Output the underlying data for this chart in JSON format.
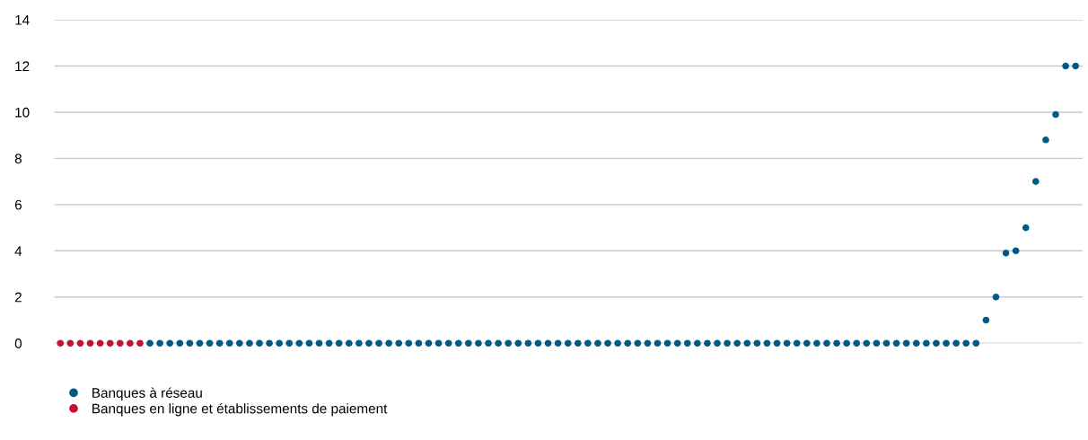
{
  "chart_data": {
    "type": "scatter",
    "categories": [
      null,
      null,
      null,
      null,
      null,
      null,
      null,
      null,
      null,
      null,
      null,
      null,
      null,
      null,
      null,
      null,
      null,
      null,
      null,
      null,
      null,
      null,
      null,
      null,
      null,
      null,
      null,
      null,
      null,
      null,
      null,
      null,
      null,
      null,
      null,
      null,
      null,
      null,
      null,
      null,
      null,
      null,
      null,
      null,
      null,
      null,
      null,
      null,
      null,
      null,
      null,
      null,
      null,
      null,
      null,
      null,
      null,
      null,
      null,
      null,
      null,
      null,
      null,
      null,
      null,
      null,
      null,
      null,
      null,
      null,
      null,
      null,
      null,
      null,
      null,
      null,
      null,
      null,
      null,
      null,
      null,
      null,
      null,
      null,
      null,
      null,
      null,
      null,
      null,
      null,
      null,
      null,
      null,
      null,
      null,
      null,
      null,
      null,
      null,
      null,
      null,
      null,
      null
    ],
    "series": [
      {
        "name": "Banques à réseau",
        "color": "#005a87",
        "values": [
          null,
          null,
          null,
          null,
          null,
          null,
          null,
          null,
          null,
          0,
          0,
          0,
          0,
          0,
          0,
          0,
          0,
          0,
          0,
          0,
          0,
          0,
          0,
          0,
          0,
          0,
          0,
          0,
          0,
          0,
          0,
          0,
          0,
          0,
          0,
          0,
          0,
          0,
          0,
          0,
          0,
          0,
          0,
          0,
          0,
          0,
          0,
          0,
          0,
          0,
          0,
          0,
          0,
          0,
          0,
          0,
          0,
          0,
          0,
          0,
          0,
          0,
          0,
          0,
          0,
          0,
          0,
          0,
          0,
          0,
          0,
          0,
          0,
          0,
          0,
          0,
          0,
          0,
          0,
          0,
          0,
          0,
          0,
          0,
          0,
          0,
          0,
          0,
          0,
          0,
          0,
          0,
          0,
          1.0,
          2.0,
          3.9,
          4.0,
          5.0,
          7.0,
          8.8,
          9.9,
          12,
          12
        ]
      },
      {
        "name": "Banques en ligne et établissements de paiement",
        "color": "#c8102e",
        "values": [
          0,
          0,
          0,
          0,
          0,
          0,
          0,
          0,
          0,
          null,
          null,
          null,
          null,
          null,
          null,
          null,
          null,
          null,
          null,
          null,
          null,
          null,
          null,
          null,
          null,
          null,
          null,
          null,
          null,
          null,
          null,
          null,
          null,
          null,
          null,
          null,
          null,
          null,
          null,
          null,
          null,
          null,
          null,
          null,
          null,
          null,
          null,
          null,
          null,
          null,
          null,
          null,
          null,
          null,
          null,
          null,
          null,
          null,
          null,
          null,
          null,
          null,
          null,
          null,
          null,
          null,
          null,
          null,
          null,
          null,
          null,
          null,
          null,
          null,
          null,
          null,
          null,
          null,
          null,
          null,
          null,
          null,
          null,
          null,
          null,
          null,
          null,
          null,
          null,
          null,
          null,
          null,
          null,
          null,
          null,
          null,
          null,
          null,
          null,
          null,
          null,
          null,
          null
        ]
      }
    ],
    "ylim": [
      0,
      14
    ],
    "yticks": [
      0,
      2,
      4,
      6,
      8,
      10,
      12,
      14
    ],
    "grid": "y",
    "legend": "bottom left",
    "tick_labels": "y",
    "marker": "circle"
  }
}
